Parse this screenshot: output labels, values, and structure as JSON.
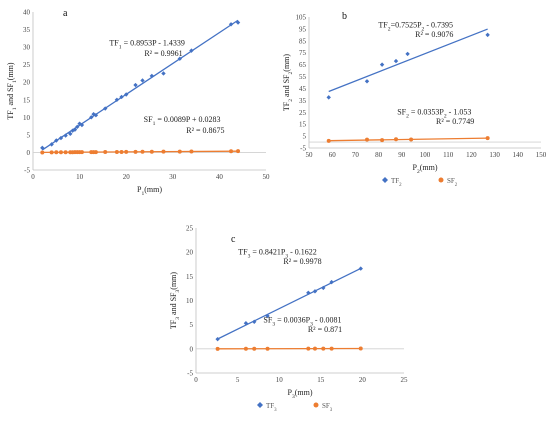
{
  "chart_data": [
    {
      "type": "scatter",
      "panel": "a",
      "xlabel": "P1(mm)",
      "ylabel": "TF1 and SF1(mm)",
      "xlim": [
        0,
        50
      ],
      "ylim": [
        -5,
        40
      ],
      "xticks": [
        "0",
        "10",
        "20",
        "30",
        "40",
        "50"
      ],
      "yticks": [
        "-5",
        "0",
        "5",
        "10",
        "15",
        "20",
        "25",
        "30",
        "35",
        "40"
      ],
      "grid": false,
      "series": [
        {
          "id": "TF1",
          "color": "#4472C4",
          "marker": "diamond",
          "trendline": true,
          "points": [
            [
              2,
              1.3
            ],
            [
              4,
              2.3
            ],
            [
              5,
              3.4
            ],
            [
              6,
              4.1
            ],
            [
              7,
              4.8
            ],
            [
              8,
              5.3
            ],
            [
              8.5,
              6.2
            ],
            [
              9,
              6.5
            ],
            [
              9.5,
              7.3
            ],
            [
              10,
              8.2
            ],
            [
              10.5,
              7.8
            ],
            [
              12.5,
              10
            ],
            [
              13,
              10.9
            ],
            [
              13.5,
              10.6
            ],
            [
              15.5,
              12.5
            ],
            [
              18,
              15
            ],
            [
              19,
              15.8
            ],
            [
              20,
              16.5
            ],
            [
              22,
              19.2
            ],
            [
              23.5,
              20.5
            ],
            [
              25.5,
              21.8
            ],
            [
              28,
              22.5
            ],
            [
              31.5,
              26.7
            ],
            [
              34,
              29
            ],
            [
              42.5,
              36.5
            ],
            [
              44,
              37
            ]
          ]
        },
        {
          "id": "SF1",
          "color": "#ED7D31",
          "marker": "circle",
          "trendline": true,
          "points": [
            [
              2,
              0
            ],
            [
              4,
              0.02
            ],
            [
              5,
              0.04
            ],
            [
              6,
              0.05
            ],
            [
              7,
              0.06
            ],
            [
              8,
              0.07
            ],
            [
              8.5,
              0.07
            ],
            [
              9,
              0.08
            ],
            [
              9.5,
              0.08
            ],
            [
              10,
              0.09
            ],
            [
              10.5,
              0.09
            ],
            [
              12.5,
              0.1
            ],
            [
              13,
              0.1
            ],
            [
              13.5,
              0.1
            ],
            [
              15.5,
              0.12
            ],
            [
              18,
              0.13
            ],
            [
              19,
              0.14
            ],
            [
              20,
              0.15
            ],
            [
              22,
              0.17
            ],
            [
              23.5,
              0.18
            ],
            [
              25.5,
              0.2
            ],
            [
              28,
              0.22
            ],
            [
              31.5,
              0.25
            ],
            [
              34,
              0.27
            ],
            [
              42.5,
              0.35
            ],
            [
              44,
              0.36
            ]
          ]
        }
      ],
      "annotations": [
        {
          "label": "TF1 = 0.8953P - 1.4339",
          "x": 24.5,
          "y": 30.5
        },
        {
          "label": "R² = 0.9961",
          "x": 28,
          "y": 27.5
        },
        {
          "label": "SF1 = 0.0089P + 0.0283",
          "x": 32,
          "y": 8.7
        },
        {
          "label": "R² = 0.8675",
          "x": 37,
          "y": 5.5
        }
      ]
    },
    {
      "type": "scatter",
      "panel": "b",
      "xlabel": "P2(mm)",
      "ylabel": "TF2 and SF2(mm)",
      "xlim": [
        50,
        150
      ],
      "ylim": [
        -5,
        105
      ],
      "xticks": [
        "50",
        "60",
        "70",
        "80",
        "90",
        "100",
        "110",
        "120",
        "130",
        "140",
        "150"
      ],
      "yticks": [
        "-5",
        "5",
        "15",
        "25",
        "35",
        "45",
        "55",
        "65",
        "75",
        "85",
        "95",
        "105"
      ],
      "grid": false,
      "legend": {
        "placement": "bottom",
        "entries": [
          "TF2",
          "SF2"
        ]
      },
      "series": [
        {
          "id": "TF2",
          "color": "#4472C4",
          "marker": "diamond",
          "trendline": true,
          "points": [
            [
              58.5,
              37.5
            ],
            [
              75,
              51
            ],
            [
              81.5,
              65
            ],
            [
              87.5,
              68
            ],
            [
              92.5,
              74
            ],
            [
              127,
              90
            ]
          ]
        },
        {
          "id": "SF2",
          "color": "#ED7D31",
          "marker": "circle",
          "trendline": true,
          "points": [
            [
              58.5,
              1
            ],
            [
              75,
              2
            ],
            [
              81.5,
              1.6
            ],
            [
              87.5,
              2.3
            ],
            [
              94,
              2.1
            ],
            [
              127,
              3.3
            ]
          ]
        }
      ],
      "annotations": [
        {
          "label": "TF2=0.7525P2 - 0.7395",
          "x": 96,
          "y": 96
        },
        {
          "label": "R² = 0.9076",
          "x": 104,
          "y": 88
        },
        {
          "label": "SF2 = 0.0353P2 - 1.053",
          "x": 104,
          "y": 23
        },
        {
          "label": "R² = 0.7749",
          "x": 113,
          "y": 15
        }
      ]
    },
    {
      "type": "scatter",
      "panel": "c",
      "xlabel": "P3(mm)",
      "ylabel": "TF3 and SF3(mm)",
      "xlim": [
        0,
        25
      ],
      "ylim": [
        -5,
        25
      ],
      "xticks": [
        "0",
        "5",
        "10",
        "15",
        "20",
        "25"
      ],
      "yticks": [
        "-5",
        "0",
        "5",
        "10",
        "15",
        "20",
        "25"
      ],
      "grid": false,
      "legend": {
        "placement": "bottom",
        "entries": [
          "TF3",
          "SF3"
        ]
      },
      "series": [
        {
          "id": "TF3",
          "color": "#4472C4",
          "marker": "diamond",
          "trendline": true,
          "points": [
            [
              2.6,
              2
            ],
            [
              6,
              5.3
            ],
            [
              7,
              5.6
            ],
            [
              8.6,
              6.8
            ],
            [
              13.5,
              11.6
            ],
            [
              14.3,
              11.9
            ],
            [
              15.3,
              12.6
            ],
            [
              16.3,
              13.8
            ],
            [
              19.8,
              16.6
            ]
          ]
        },
        {
          "id": "SF3",
          "color": "#ED7D31",
          "marker": "circle",
          "trendline": true,
          "points": [
            [
              2.6,
              0
            ],
            [
              6,
              0.01
            ],
            [
              7,
              0.02
            ],
            [
              8.6,
              0.02
            ],
            [
              13.5,
              0.04
            ],
            [
              14.3,
              0.04
            ],
            [
              15.3,
              0.05
            ],
            [
              16.3,
              0.05
            ],
            [
              19.8,
              0.06
            ]
          ]
        }
      ],
      "annotations": [
        {
          "label": "TF3 = 0.8421P3 - 0.1622",
          "x": 9.8,
          "y": 19.5
        },
        {
          "label": "R² = 0.9978",
          "x": 12.8,
          "y": 17.6
        },
        {
          "label": "SF3 = 0.0036P3 - 0.0081",
          "x": 12.8,
          "y": 5.5
        },
        {
          "label": "R² = 0.871",
          "x": 15.5,
          "y": 3.5
        }
      ]
    }
  ]
}
